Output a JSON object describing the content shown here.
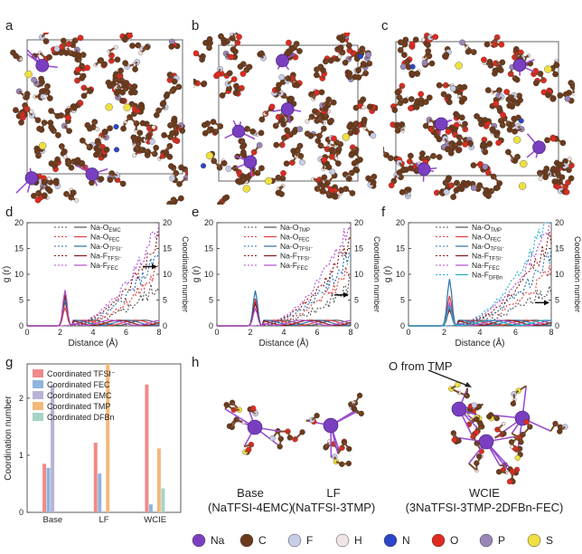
{
  "panel_labels": [
    "a",
    "b",
    "c",
    "d",
    "e",
    "f",
    "g",
    "h"
  ],
  "rdf_panels": [
    {
      "id": "d",
      "y_left_label": "g (r)",
      "y_right_label": "Coordination number",
      "x_label": "Distance (Å)",
      "x_ticks": [
        "0",
        "2",
        "4",
        "6",
        "8"
      ],
      "y_left_ticks": [
        "0",
        "5",
        "10",
        "15",
        "20"
      ],
      "y_right_ticks": [
        "0",
        "5",
        "10",
        "15",
        "20"
      ],
      "legend": [
        {
          "base": "Na-O",
          "sub": "EMC",
          "color": "#555555"
        },
        {
          "base": "Na-O",
          "sub": "FEC",
          "color": "#e04040"
        },
        {
          "base": "Na-O",
          "sub": "TFSI⁻",
          "color": "#2a6fa8"
        },
        {
          "base": "Na-F",
          "sub": "TFSI⁻",
          "color": "#8b1a1a"
        },
        {
          "base": "Na-F",
          "sub": "FEC",
          "color": "#b04fd0"
        }
      ]
    },
    {
      "id": "e",
      "y_left_label": "g (r)",
      "y_right_label": "Coordination number",
      "x_label": "Distance (Å)",
      "x_ticks": [
        "0",
        "2",
        "4",
        "6",
        "8"
      ],
      "y_left_ticks": [
        "0",
        "5",
        "10",
        "15",
        "20"
      ],
      "y_right_ticks": [
        "0",
        "5",
        "10",
        "15",
        "20"
      ],
      "legend": [
        {
          "base": "Na-O",
          "sub": "TMP",
          "color": "#555555"
        },
        {
          "base": "Na-O",
          "sub": "FEC",
          "color": "#e04040"
        },
        {
          "base": "Na-O",
          "sub": "TFSI⁻",
          "color": "#2a6fa8"
        },
        {
          "base": "Na-F",
          "sub": "TFSI⁻",
          "color": "#8b1a1a"
        },
        {
          "base": "Na-F",
          "sub": "FEC",
          "color": "#b04fd0"
        }
      ]
    },
    {
      "id": "f",
      "y_left_label": "g (r)",
      "y_right_label": "Coordination number",
      "x_label": "Distance (Å)",
      "x_ticks": [
        "0",
        "2",
        "4",
        "6",
        "8"
      ],
      "y_left_ticks": [
        "0",
        "5",
        "10",
        "15",
        "20"
      ],
      "y_right_ticks": [
        "0",
        "5",
        "10",
        "15",
        "20"
      ],
      "legend": [
        {
          "base": "Na-O",
          "sub": "TMP",
          "color": "#555555"
        },
        {
          "base": "Na-O",
          "sub": "FEC",
          "color": "#e04040"
        },
        {
          "base": "Na-O",
          "sub": "TFSI⁻",
          "color": "#2a6fa8"
        },
        {
          "base": "Na-F",
          "sub": "TFSI⁻",
          "color": "#8b1a1a"
        },
        {
          "base": "Na-F",
          "sub": "FEC",
          "color": "#b04fd0"
        },
        {
          "base": "Na-F",
          "sub": "DFBn",
          "color": "#20b0c8"
        }
      ]
    }
  ],
  "bar_chart": {
    "y_label": "Coordination number",
    "categories": [
      "Base",
      "LF",
      "WCIE"
    ],
    "y_ticks": [
      "0",
      "1",
      "2"
    ],
    "legend": [
      {
        "label": "Coordinated TFSI⁻",
        "color": "#f08a8a"
      },
      {
        "label": "Coordinated FEC",
        "color": "#8fb4dd"
      },
      {
        "label": "Coordinated EMC",
        "color": "#b7b3d6"
      },
      {
        "label": "Coordinated TMP",
        "color": "#f5b87a"
      },
      {
        "label": "Coordinated DFBn",
        "color": "#a6d3c6"
      }
    ]
  },
  "chart_data": {
    "type": "bar",
    "categories": [
      "Base",
      "LF",
      "WCIE"
    ],
    "ylabel": "Coordination number",
    "ylim": [
      0,
      2.6
    ],
    "series": [
      {
        "name": "Coordinated TFSI⁻",
        "values": [
          0.85,
          1.22,
          2.24
        ]
      },
      {
        "name": "Coordinated FEC",
        "values": [
          0.78,
          0.68,
          0.14
        ]
      },
      {
        "name": "Coordinated EMC",
        "values": [
          2.24,
          0,
          0
        ]
      },
      {
        "name": "Coordinated TMP",
        "values": [
          0,
          2.6,
          1.12
        ]
      },
      {
        "name": "Coordinated DFBn",
        "values": [
          0,
          0,
          0.42
        ]
      }
    ]
  },
  "structures": [
    {
      "name": "Base",
      "formula": "(NaTFSI-4EMC)"
    },
    {
      "name": "LF",
      "formula": "(NaTFSI-3TMP)"
    },
    {
      "name": "WCIE",
      "formula": "(3NaTFSI-3TMP-2DFBn-FEC)"
    }
  ],
  "h_annotation": "O from TMP",
  "atom_legend": [
    {
      "label": "Na",
      "color": "#7a3fc0"
    },
    {
      "label": "C",
      "color": "#6b3a1c"
    },
    {
      "label": "F",
      "color": "#c8cde8"
    },
    {
      "label": "H",
      "color": "#f2e4e4"
    },
    {
      "label": "N",
      "color": "#2a45c8"
    },
    {
      "label": "O",
      "color": "#e02a20"
    },
    {
      "label": "P",
      "color": "#9a86b6"
    },
    {
      "label": "S",
      "color": "#efe040"
    }
  ],
  "colors": {
    "grid_line": "#cccccc",
    "axis": "#333333"
  }
}
